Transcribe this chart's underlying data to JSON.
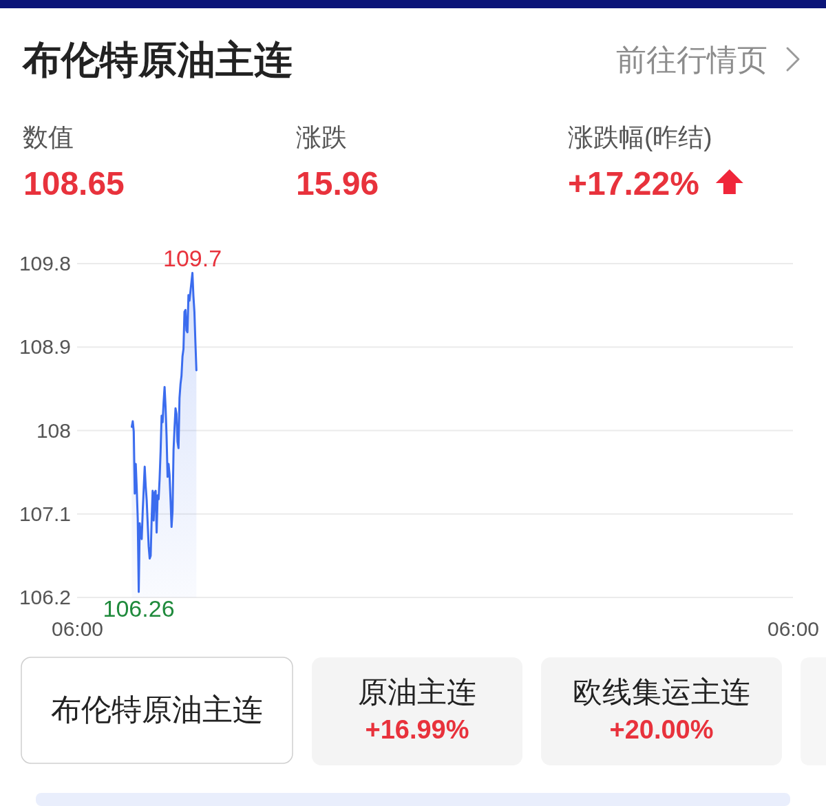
{
  "chart_data": {
    "type": "area",
    "title": "布伦特原油主连",
    "categories": [
      "06:00",
      null,
      null,
      null,
      null,
      null,
      null,
      null,
      null,
      null,
      null,
      null,
      null,
      null,
      null,
      null,
      null,
      null,
      null,
      null,
      null,
      null,
      null,
      null,
      null,
      null,
      null,
      null,
      null,
      null,
      null,
      null,
      null,
      null,
      null,
      null,
      null,
      null,
      null,
      null,
      null,
      null,
      null,
      null,
      null,
      null,
      null,
      null,
      null,
      null,
      null,
      null,
      null,
      null,
      null,
      null,
      null,
      null,
      null,
      null,
      null,
      null,
      null,
      null,
      null,
      null,
      null,
      null,
      null,
      null,
      null,
      null,
      null,
      null,
      null,
      null,
      null,
      null,
      null,
      null,
      null,
      null,
      null,
      null,
      null,
      null,
      null,
      null,
      null,
      null,
      null,
      null,
      null,
      null,
      null,
      null,
      null,
      null,
      null,
      null,
      null,
      null,
      null,
      null,
      null,
      null,
      null,
      null,
      null,
      null,
      null,
      null,
      null,
      null,
      null,
      null,
      null,
      null,
      null,
      null,
      null,
      null,
      null,
      null,
      null,
      null,
      null,
      null,
      null,
      null,
      null,
      null,
      null,
      null,
      null,
      null,
      null,
      null,
      null,
      null,
      null,
      null,
      null,
      null,
      null,
      null,
      null,
      null,
      null,
      null,
      null,
      null,
      null,
      null,
      null,
      null,
      null,
      null,
      null,
      null,
      null,
      null,
      null,
      null,
      null,
      null,
      null,
      null,
      null,
      null,
      null,
      null,
      null,
      null,
      null,
      null,
      null,
      null,
      null,
      null,
      null,
      null,
      null,
      null,
      null,
      null,
      null,
      null,
      null,
      null,
      null,
      null,
      null,
      null,
      null,
      null,
      null,
      null,
      null,
      null,
      null,
      null,
      null,
      null,
      null,
      null,
      null,
      null,
      null,
      null,
      null,
      null,
      null,
      null,
      null,
      null,
      null,
      null,
      null,
      null,
      null,
      null,
      null,
      null,
      null,
      null,
      null,
      null,
      null,
      null,
      null,
      null,
      null,
      null,
      null,
      null,
      null,
      null,
      null,
      null,
      null,
      null,
      null,
      null,
      null,
      null,
      null,
      null,
      null,
      null,
      null,
      null,
      null,
      null,
      null,
      null,
      null,
      null,
      null,
      null,
      null,
      null,
      null,
      null,
      null,
      null,
      null,
      null,
      null,
      null,
      null,
      null,
      null,
      null,
      null,
      null,
      null,
      null,
      null,
      null,
      null,
      null,
      null,
      null,
      null,
      null,
      null,
      null,
      null,
      null,
      null,
      null,
      null,
      null,
      null,
      null,
      null,
      null,
      null,
      null,
      null,
      null,
      null,
      null,
      null,
      null,
      null,
      null,
      null,
      null,
      null,
      null,
      null,
      null,
      null,
      null,
      null,
      null,
      null,
      null,
      null,
      null,
      null,
      null,
      null,
      null,
      null,
      null,
      null,
      null,
      null,
      null,
      null,
      null,
      null,
      null,
      null,
      null,
      null,
      null,
      null,
      null,
      null,
      null,
      null,
      null,
      null,
      null,
      null,
      null,
      null,
      null,
      null,
      null,
      null,
      null,
      null,
      null,
      null,
      null,
      null,
      null,
      null,
      null,
      null,
      null,
      null,
      null,
      null,
      null,
      null,
      null,
      null,
      null,
      null,
      null,
      null,
      null,
      null,
      null,
      null,
      null,
      null,
      null,
      null,
      null,
      null,
      null,
      null,
      null,
      null,
      null,
      null,
      null,
      null,
      null,
      null,
      null,
      null,
      null,
      null,
      null,
      null,
      null,
      null,
      null,
      null,
      null,
      null,
      null,
      null,
      null,
      null,
      null,
      null,
      null,
      null,
      null,
      null,
      null,
      null,
      null,
      null,
      null,
      null,
      null,
      null,
      null,
      null,
      null,
      null,
      null,
      null,
      null,
      null,
      null,
      null,
      null,
      null,
      null,
      null,
      null,
      null,
      null,
      null,
      null,
      null,
      null,
      null,
      null,
      null,
      null,
      null,
      null,
      null,
      null,
      null,
      null,
      null,
      null,
      null,
      null,
      null,
      null,
      null,
      null,
      null,
      null,
      null,
      null,
      null,
      null,
      null,
      null,
      null,
      null,
      null,
      null,
      null,
      null,
      null,
      null,
      null,
      null,
      null,
      null,
      null,
      null,
      null,
      null,
      null,
      null,
      null,
      null,
      null,
      null,
      null,
      null,
      null,
      null,
      null,
      null,
      null,
      null,
      null,
      null,
      null,
      null,
      null,
      null,
      null,
      null,
      null,
      null,
      null,
      null,
      null,
      null,
      null,
      null,
      null,
      null,
      null,
      null,
      null,
      null,
      null,
      null,
      null,
      null,
      null,
      null,
      null,
      null,
      null,
      null,
      null,
      null,
      null,
      null,
      null,
      null,
      null,
      null,
      null,
      null,
      null,
      null,
      null,
      null,
      null,
      null,
      null,
      null,
      null,
      null,
      null,
      null,
      null,
      null,
      null,
      null,
      null,
      null,
      null,
      null,
      null,
      null,
      null,
      null,
      null,
      null,
      null,
      null,
      null,
      null,
      null,
      null,
      null,
      null,
      null,
      null,
      null,
      null,
      null,
      null,
      null,
      null,
      null,
      null,
      null,
      null,
      null,
      null,
      null,
      null,
      null,
      null,
      null,
      null,
      null,
      null,
      null,
      null,
      null,
      null,
      null,
      null,
      null,
      null,
      null,
      null,
      null,
      null,
      null,
      null,
      null,
      null,
      null,
      null,
      null,
      null,
      null,
      null,
      null,
      null,
      null,
      null,
      null,
      null,
      null,
      null,
      null,
      null,
      null,
      null,
      null,
      null,
      null,
      null,
      null,
      null,
      null,
      null,
      null,
      null,
      null,
      null,
      null,
      null,
      null,
      null,
      null,
      null,
      null,
      null,
      null,
      null,
      null,
      null,
      null,
      null,
      null,
      null,
      null,
      null,
      null,
      null,
      null,
      null,
      null,
      null,
      null,
      null,
      null,
      null,
      null,
      null,
      null,
      null,
      null,
      null,
      null,
      null,
      null,
      null,
      null,
      null,
      null,
      null,
      null,
      null,
      null,
      null,
      null,
      null,
      null,
      null,
      null,
      null,
      null,
      null,
      null,
      null,
      null,
      null,
      null,
      null,
      null,
      null,
      null,
      null,
      null,
      null,
      null,
      null,
      null,
      null,
      null,
      null,
      "06:00"
    ],
    "values": [
      null,
      null,
      null,
      null,
      null,
      null,
      null,
      null,
      null,
      null,
      null,
      null,
      null,
      null,
      null,
      null,
      null,
      null,
      null,
      null,
      null,
      null,
      null,
      null,
      null,
      null,
      null,
      null,
      null,
      null,
      null,
      null,
      null,
      null,
      null,
      null,
      null,
      null,
      null,
      null,
      null,
      null,
      null,
      null,
      null,
      null,
      null,
      null,
      null,
      null,
      null,
      null,
      null,
      null,
      null,
      108.04,
      108.1,
      107.99,
      107.32,
      107.64,
      107.37,
      107.05,
      106.26,
      107.0,
      106.88,
      106.83,
      107.13,
      107.37,
      107.61,
      107.4,
      107.25,
      107.0,
      106.75,
      106.62,
      106.65,
      107.05,
      107.35,
      107.03,
      107.33,
      107.35,
      106.9,
      107.3,
      107.26,
      107.48,
      107.78,
      108.16,
      108.09,
      108.3,
      108.47,
      108.25,
      107.94,
      107.5,
      107.64,
      107.52,
      107.25,
      106.96,
      107.13,
      107.79,
      108.03,
      108.24,
      108.18,
      107.88,
      107.81,
      108.35,
      108.5,
      108.59,
      108.8,
      108.88,
      109.28,
      109.3,
      109.08,
      109.06,
      109.46,
      109.4,
      109.5,
      109.6,
      109.7,
      109.45,
      109.28,
      108.95,
      108.65,
      null,
      null,
      null,
      null,
      null,
      null,
      null,
      null,
      null,
      null,
      null,
      null,
      null,
      null,
      null,
      null,
      null,
      null,
      null,
      null,
      null,
      null,
      null,
      null,
      null,
      null,
      null,
      null,
      null,
      null,
      null,
      null,
      null,
      null,
      null,
      null,
      null,
      null,
      null,
      null,
      null,
      null,
      null,
      null,
      null,
      null,
      null,
      null,
      null,
      null,
      null,
      null,
      null,
      null,
      null,
      null,
      null,
      null,
      null,
      null,
      null,
      null,
      null,
      null,
      null,
      null,
      null,
      null,
      null,
      null,
      null,
      null,
      null,
      null,
      null,
      null,
      null,
      null,
      null,
      null,
      null,
      null,
      null,
      null,
      null,
      null,
      null,
      null,
      null,
      null,
      null,
      null,
      null,
      null,
      null,
      null,
      null,
      null,
      null,
      null,
      null,
      null,
      null,
      null,
      null,
      null,
      null,
      null,
      null,
      null,
      null,
      null,
      null,
      null,
      null,
      null,
      null,
      null,
      null,
      null,
      null,
      null,
      null,
      null,
      null,
      null,
      null,
      null,
      null,
      null,
      null,
      null,
      null,
      null,
      null,
      null,
      null,
      null,
      null,
      null,
      null,
      null,
      null,
      null,
      null,
      null,
      null,
      null,
      null,
      null,
      null,
      null,
      null,
      null,
      null,
      null,
      null,
      null,
      null,
      null,
      null,
      null,
      null,
      null,
      null,
      null,
      null,
      null,
      null,
      null,
      null,
      null,
      null,
      null,
      null,
      null,
      null,
      null,
      null,
      null,
      null,
      null,
      null,
      null,
      null,
      null,
      null,
      null,
      null,
      null,
      null,
      null,
      null,
      null,
      null,
      null,
      null,
      null,
      null,
      null,
      null,
      null,
      null,
      null,
      null,
      null,
      null,
      null,
      null,
      null,
      null,
      null,
      null,
      null,
      null,
      null,
      null,
      null,
      null,
      null,
      null,
      null,
      null,
      null,
      null,
      null,
      null,
      null,
      null,
      null,
      null,
      null,
      null,
      null,
      null,
      null,
      null,
      null,
      null,
      null,
      null,
      null,
      null,
      null,
      null,
      null,
      null,
      null,
      null,
      null,
      null,
      null,
      null,
      null,
      null,
      null,
      null,
      null,
      null,
      null,
      null,
      null,
      null,
      null,
      null,
      null,
      null,
      null,
      null,
      null,
      null,
      null,
      null,
      null,
      null,
      null,
      null,
      null,
      null,
      null,
      null,
      null,
      null,
      null,
      null,
      null,
      null,
      null,
      null,
      null,
      null,
      null,
      null,
      null,
      null,
      null,
      null,
      null,
      null,
      null,
      null,
      null,
      null,
      null,
      null,
      null,
      null,
      null,
      null,
      null,
      null,
      null,
      null,
      null,
      null,
      null,
      null,
      null,
      null,
      null,
      null,
      null,
      null,
      null,
      null,
      null,
      null,
      null,
      null,
      null,
      null,
      null,
      null,
      null,
      null,
      null,
      null,
      null,
      null,
      null,
      null,
      null,
      null,
      null,
      null,
      null,
      null,
      null,
      null,
      null,
      null,
      null,
      null,
      null,
      null,
      null,
      null,
      null,
      null,
      null,
      null,
      null,
      null,
      null,
      null,
      null,
      null,
      null,
      null,
      null,
      null,
      null,
      null,
      null,
      null,
      null,
      null,
      null,
      null,
      null,
      null,
      null,
      null,
      null,
      null,
      null,
      null,
      null,
      null,
      null,
      null,
      null,
      null,
      null,
      null,
      null,
      null,
      null,
      null,
      null,
      null,
      null,
      null,
      null,
      null,
      null,
      null,
      null,
      null,
      null,
      null,
      null,
      null,
      null,
      null,
      null,
      null,
      null,
      null,
      null,
      null,
      null,
      null,
      null,
      null,
      null,
      null,
      null,
      null,
      null,
      null,
      null,
      null,
      null,
      null,
      null,
      null,
      null,
      null,
      null,
      null,
      null,
      null,
      null,
      null,
      null,
      null,
      null,
      null,
      null,
      null,
      null,
      null,
      null,
      null,
      null,
      null,
      null,
      null,
      null,
      null,
      null,
      null,
      null,
      null,
      null,
      null,
      null,
      null,
      null,
      null,
      null,
      null,
      null,
      null,
      null,
      null,
      null,
      null,
      null,
      null,
      null,
      null,
      null,
      null,
      null,
      null,
      null,
      null,
      null,
      null,
      null,
      null,
      null,
      null,
      null,
      null,
      null,
      null,
      null,
      null,
      null,
      null,
      null,
      null,
      null,
      null,
      null,
      null,
      null,
      null,
      null,
      null,
      null,
      null,
      null,
      null,
      null,
      null,
      null,
      null,
      null,
      null,
      null,
      null,
      null,
      null,
      null,
      null,
      null,
      null,
      null,
      null,
      null,
      null,
      null,
      null,
      null,
      null,
      null,
      null,
      null,
      null,
      null,
      null,
      null,
      null,
      null,
      null,
      null,
      null,
      null,
      null,
      null,
      null,
      null,
      null,
      null,
      null,
      null,
      null,
      null,
      null,
      null,
      null,
      null,
      null,
      null,
      null,
      null,
      null,
      null,
      null,
      null,
      null,
      null,
      null,
      null,
      null,
      null,
      null,
      null,
      null,
      null,
      null,
      null,
      null,
      null,
      null,
      null,
      null,
      null,
      null,
      null,
      null,
      null,
      null,
      null,
      null,
      null
    ],
    "color": "#3b6cee",
    "ylim": [
      106.2,
      109.8
    ],
    "yticks": [
      106.2,
      107.1,
      108,
      108.9,
      109.8
    ],
    "grid": "y",
    "annotations": [
      "前往行情页",
      "数值",
      "108.65",
      "涨跌",
      "15.96",
      "涨跌幅(昨结)",
      "+17.22%",
      "布伦特原油主连",
      "原油主连",
      "+16.99%",
      "欧线集运主连",
      "+20.00%",
      {
        "text": "109.7",
        "y": 109.7
      },
      {
        "text": "106.26",
        "y": 106.26
      }
    ]
  }
}
